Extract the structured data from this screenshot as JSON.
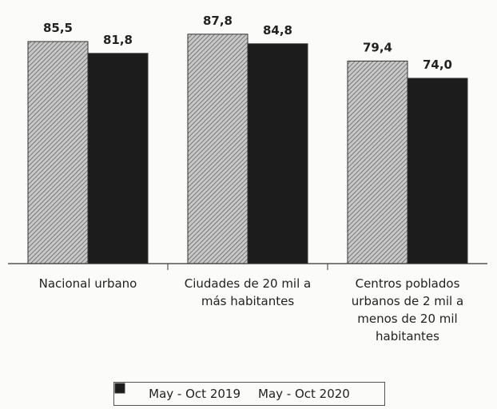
{
  "chart_data": {
    "type": "bar",
    "categories": [
      "Nacional urbano",
      "Ciudades de 20 mil a más habitantes",
      "Centros poblados urbanos de 2 mil a menos de 20 mil habitantes"
    ],
    "series": [
      {
        "name": "May - Oct 2019",
        "color": "#c8c8c8",
        "pattern": "hatch",
        "values": [
          85.5,
          87.8,
          79.4
        ],
        "value_labels": [
          "85,5",
          "87,8",
          "79,4"
        ]
      },
      {
        "name": "May - Oct 2020",
        "color": "#1c1c1c",
        "values": [
          81.8,
          84.8,
          74.0
        ],
        "value_labels": [
          "81,8",
          "84,8",
          "74,0"
        ]
      }
    ],
    "ylim": [
      16,
      95
    ],
    "legend": "bottom"
  }
}
